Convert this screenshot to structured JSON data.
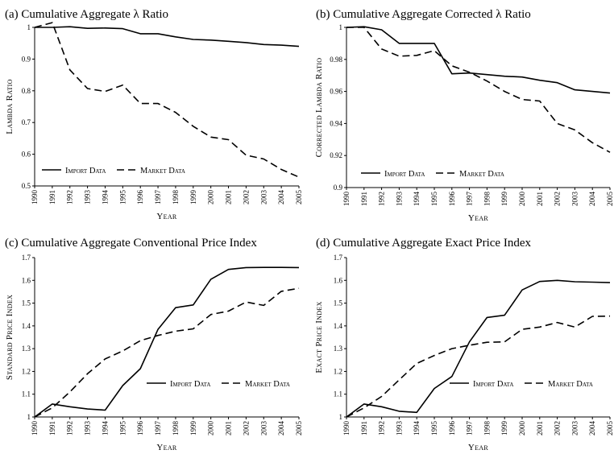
{
  "chart_data": [
    {
      "type": "line",
      "title": "(a) Cumulative Aggregate λ Ratio",
      "xlabel": "Year",
      "ylabel": "Lambda Ratio",
      "x": [
        "1990",
        "1991",
        "1992",
        "1993",
        "1994",
        "1995",
        "1996",
        "1997",
        "1998",
        "1999",
        "2000",
        "2001",
        "2002",
        "2003",
        "2004",
        "2005"
      ],
      "ylim": [
        0.5,
        1.0
      ],
      "yticks": [
        "0.5",
        "0.6",
        "0.7",
        "0.8",
        "0.9",
        "1"
      ],
      "legend": "bottom-left",
      "series": [
        {
          "name": "Import Data",
          "dash": "solid",
          "values": [
            1.0,
            1.0,
            1.002,
            0.997,
            0.998,
            0.996,
            0.98,
            0.98,
            0.97,
            0.962,
            0.96,
            0.956,
            0.952,
            0.946,
            0.944,
            0.94
          ]
        },
        {
          "name": "Market Data",
          "dash": "dashed",
          "values": [
            1.0,
            1.015,
            0.866,
            0.807,
            0.798,
            0.818,
            0.76,
            0.76,
            0.732,
            0.688,
            0.654,
            0.646,
            0.597,
            0.585,
            0.552,
            0.528
          ]
        }
      ]
    },
    {
      "type": "line",
      "title": "(b) Cumulative Aggregate Corrected λ Ratio",
      "xlabel": "Year",
      "ylabel": "Corrected Lambda Ratio",
      "x": [
        "1990",
        "1991",
        "1992",
        "1993",
        "1994",
        "1995",
        "1996",
        "1997",
        "1998",
        "1999",
        "2000",
        "2001",
        "2002",
        "2003",
        "2004",
        "2005"
      ],
      "ylim": [
        0.9,
        1.0
      ],
      "yticks": [
        "0.9",
        "0.92",
        "0.94",
        "0.96",
        "0.98",
        "1"
      ],
      "legend": "bottom-left",
      "series": [
        {
          "name": "Import Data",
          "dash": "solid",
          "values": [
            1.0,
            1.0004,
            0.9985,
            0.99,
            0.99,
            0.99,
            0.971,
            0.9715,
            0.9705,
            0.9695,
            0.969,
            0.967,
            0.9655,
            0.961,
            0.96,
            0.959
          ]
        },
        {
          "name": "Market Data",
          "dash": "dashed",
          "values": [
            1.0,
            1.0,
            0.9865,
            0.982,
            0.9825,
            0.9855,
            0.976,
            0.972,
            0.9665,
            0.96,
            0.955,
            0.954,
            0.94,
            0.936,
            0.928,
            0.922
          ]
        }
      ]
    },
    {
      "type": "line",
      "title": "(c) Cumulative Aggregate Conventional Price Index",
      "xlabel": "Year",
      "ylabel": "Standard Price Index",
      "x": [
        "1990",
        "1991",
        "1992",
        "1993",
        "1994",
        "1995",
        "1996",
        "1997",
        "1998",
        "1999",
        "2000",
        "2001",
        "2002",
        "2003",
        "2004",
        "2005"
      ],
      "ylim": [
        1.0,
        1.7
      ],
      "yticks": [
        "1",
        "1.1",
        "1.2",
        "1.3",
        "1.4",
        "1.5",
        "1.6",
        "1.7"
      ],
      "legend": "bottom-right",
      "series": [
        {
          "name": "Import Data",
          "dash": "solid",
          "values": [
            1.0,
            1.057,
            1.045,
            1.035,
            1.03,
            1.138,
            1.212,
            1.385,
            1.48,
            1.492,
            1.605,
            1.648,
            1.656,
            1.657,
            1.657,
            1.656
          ]
        },
        {
          "name": "Market Data",
          "dash": "dashed",
          "values": [
            1.0,
            1.04,
            1.11,
            1.19,
            1.255,
            1.29,
            1.335,
            1.358,
            1.377,
            1.387,
            1.45,
            1.465,
            1.505,
            1.49,
            1.552,
            1.565
          ]
        }
      ]
    },
    {
      "type": "line",
      "title": "(d) Cumulative Aggregate Exact Price Index",
      "xlabel": "Year",
      "ylabel": "Exact Price Index",
      "x": [
        "1990",
        "1991",
        "1992",
        "1993",
        "1994",
        "1995",
        "1996",
        "1997",
        "1998",
        "1999",
        "2000",
        "2001",
        "2002",
        "2003",
        "2004",
        "2005"
      ],
      "ylim": [
        1.0,
        1.7
      ],
      "yticks": [
        "1",
        "1.1",
        "1.2",
        "1.3",
        "1.4",
        "1.5",
        "1.6",
        "1.7"
      ],
      "legend": "bottom-right",
      "series": [
        {
          "name": "Import Data",
          "dash": "solid",
          "values": [
            1.0,
            1.057,
            1.045,
            1.025,
            1.02,
            1.125,
            1.178,
            1.33,
            1.437,
            1.447,
            1.558,
            1.595,
            1.6,
            1.594,
            1.592,
            1.59
          ]
        },
        {
          "name": "Market Data",
          "dash": "dashed",
          "values": [
            1.0,
            1.04,
            1.09,
            1.163,
            1.235,
            1.27,
            1.3,
            1.315,
            1.328,
            1.33,
            1.385,
            1.395,
            1.415,
            1.395,
            1.442,
            1.443
          ]
        }
      ]
    }
  ]
}
